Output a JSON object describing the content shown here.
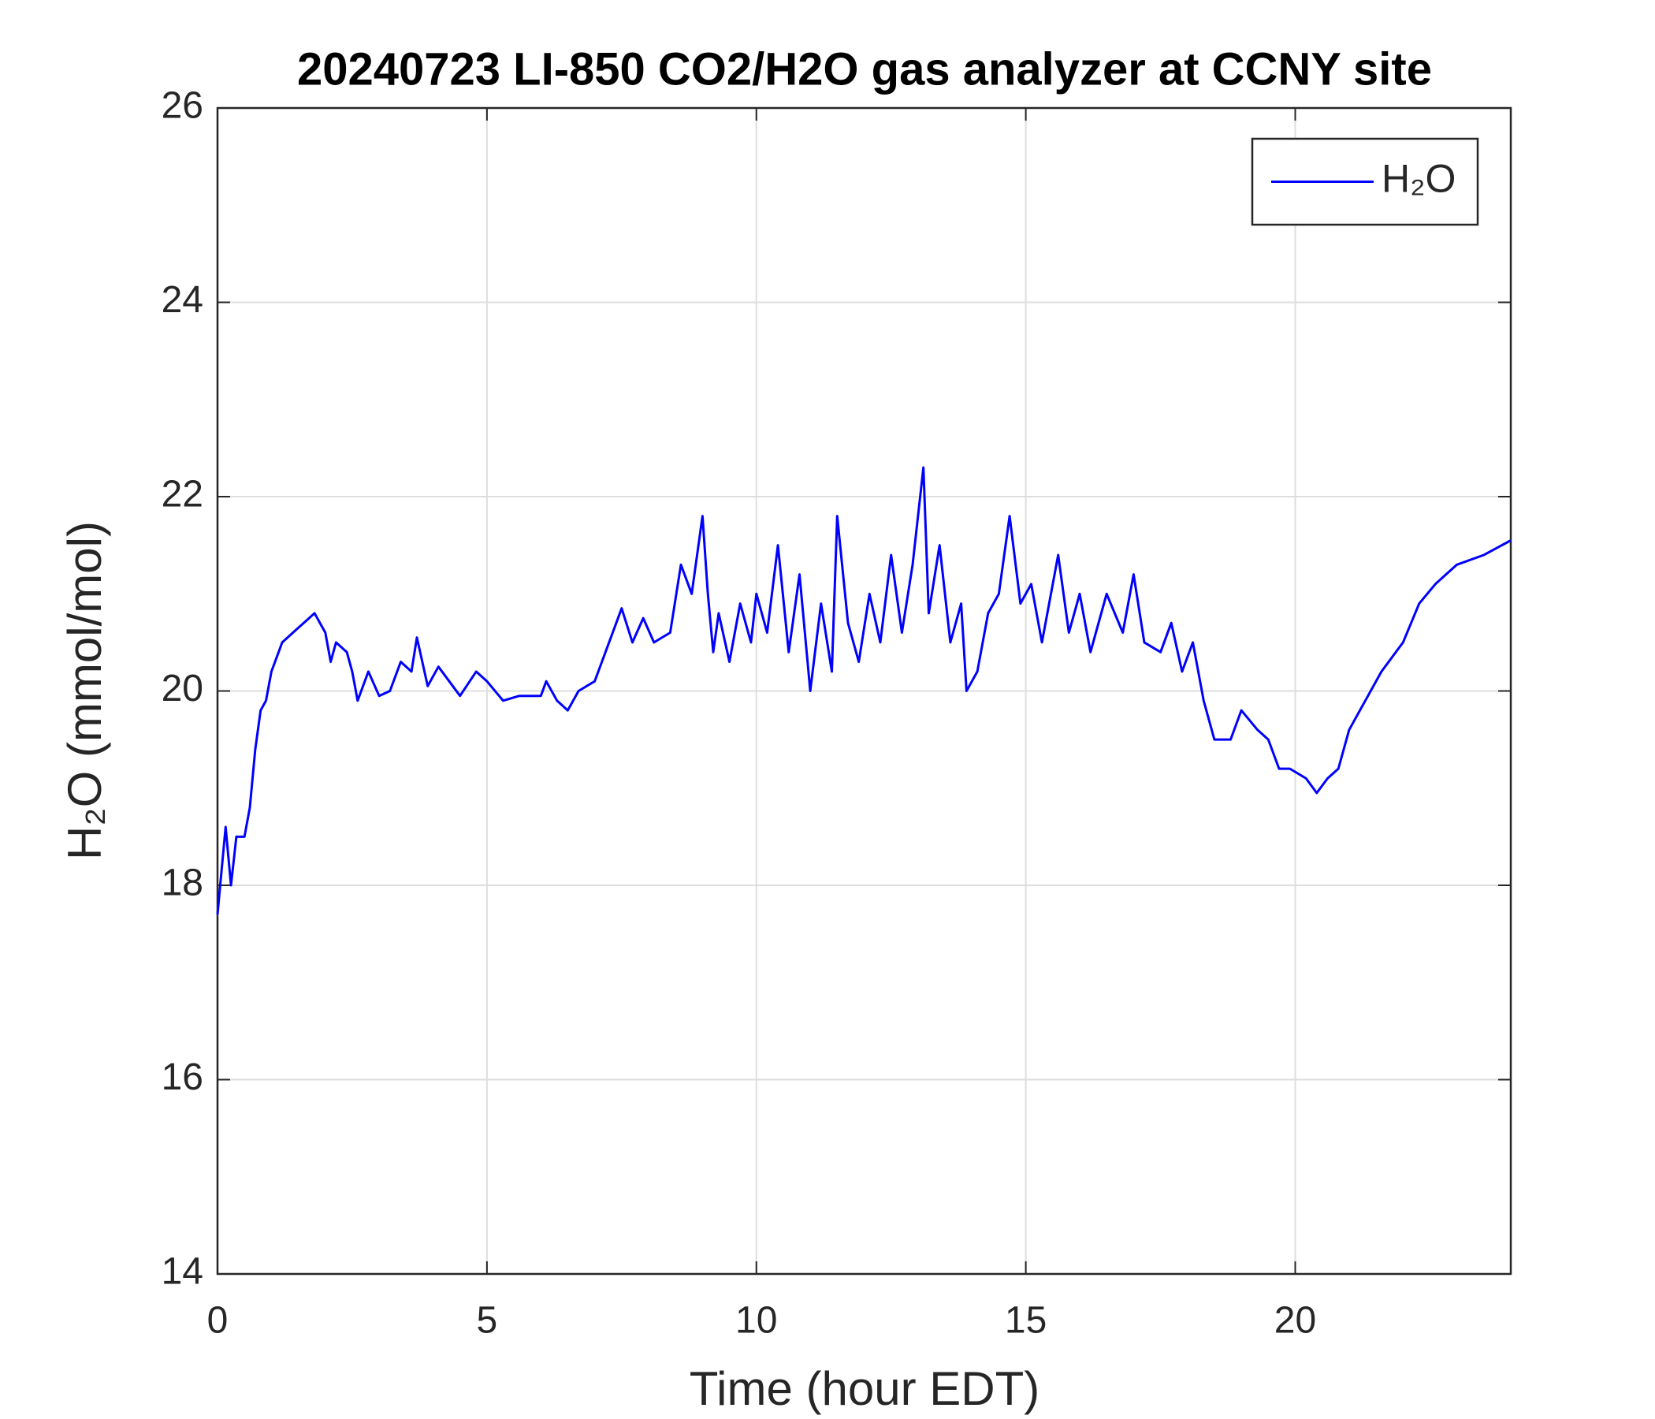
{
  "chart_data": {
    "type": "line",
    "title": "20240723 LI-850 CO2/H2O gas analyzer at CCNY site",
    "xlabel": "Time (hour EDT)",
    "ylabel": "H₂O (mmol/mol)",
    "xlim": [
      0,
      24
    ],
    "xticks": [
      0,
      5,
      10,
      15,
      20
    ],
    "ylim": [
      14,
      26
    ],
    "yticks": [
      14,
      16,
      18,
      20,
      22,
      24,
      26
    ],
    "grid": true,
    "legend": "upper right",
    "x": [
      0.0,
      0.05,
      0.15,
      0.25,
      0.35,
      0.5,
      0.6,
      0.7,
      0.8,
      0.9,
      1.0,
      1.2,
      1.4,
      1.6,
      1.8,
      2.0,
      2.1,
      2.2,
      2.4,
      2.5,
      2.6,
      2.8,
      3.0,
      3.2,
      3.4,
      3.6,
      3.7,
      3.9,
      4.1,
      4.3,
      4.5,
      4.8,
      5.0,
      5.3,
      5.6,
      6.0,
      6.1,
      6.3,
      6.5,
      6.7,
      7.0,
      7.2,
      7.5,
      7.7,
      7.9,
      8.1,
      8.4,
      8.6,
      8.8,
      9.0,
      9.1,
      9.2,
      9.3,
      9.5,
      9.7,
      9.9,
      10.0,
      10.2,
      10.4,
      10.6,
      10.8,
      11.0,
      11.2,
      11.4,
      11.5,
      11.7,
      11.9,
      12.1,
      12.3,
      12.5,
      12.7,
      12.9,
      13.1,
      13.2,
      13.4,
      13.6,
      13.8,
      13.9,
      14.1,
      14.3,
      14.5,
      14.7,
      14.9,
      15.1,
      15.3,
      15.6,
      15.8,
      16.0,
      16.2,
      16.5,
      16.8,
      17.0,
      17.2,
      17.5,
      17.7,
      17.9,
      18.1,
      18.3,
      18.5,
      18.8,
      19.0,
      19.3,
      19.5,
      19.7,
      19.9,
      20.2,
      20.4,
      20.6,
      20.8,
      21.0,
      21.3,
      21.6,
      22.0,
      22.3,
      22.6,
      23.0,
      23.5,
      24.0
    ],
    "series": [
      {
        "name": "H₂O",
        "color": "#0000ff",
        "values": [
          17.7,
          18.0,
          18.6,
          18.0,
          18.5,
          18.5,
          18.8,
          19.4,
          19.8,
          19.9,
          20.2,
          20.5,
          20.6,
          20.7,
          20.8,
          20.6,
          20.3,
          20.5,
          20.4,
          20.2,
          19.9,
          20.2,
          19.95,
          20.0,
          20.3,
          20.2,
          20.55,
          20.05,
          20.25,
          20.1,
          19.95,
          20.2,
          20.1,
          19.9,
          19.95,
          19.95,
          20.1,
          19.9,
          19.8,
          20.0,
          20.1,
          20.4,
          20.85,
          20.5,
          20.75,
          20.5,
          20.6,
          21.3,
          21.0,
          21.8,
          21.0,
          20.4,
          20.8,
          20.3,
          20.9,
          20.5,
          21.0,
          20.6,
          21.5,
          20.4,
          21.2,
          20.0,
          20.9,
          20.2,
          21.8,
          20.7,
          20.3,
          21.0,
          20.5,
          21.4,
          20.6,
          21.3,
          22.3,
          20.8,
          21.5,
          20.5,
          20.9,
          20.0,
          20.2,
          20.8,
          21.0,
          21.8,
          20.9,
          21.1,
          20.5,
          21.4,
          20.6,
          21.0,
          20.4,
          21.0,
          20.6,
          21.2,
          20.5,
          20.4,
          20.7,
          20.2,
          20.5,
          19.9,
          19.5,
          19.5,
          19.8,
          19.6,
          19.5,
          19.2,
          19.2,
          19.1,
          18.95,
          19.1,
          19.2,
          19.6,
          19.9,
          20.2,
          20.5,
          20.9,
          21.1,
          21.3,
          21.4,
          21.55
        ]
      }
    ]
  }
}
